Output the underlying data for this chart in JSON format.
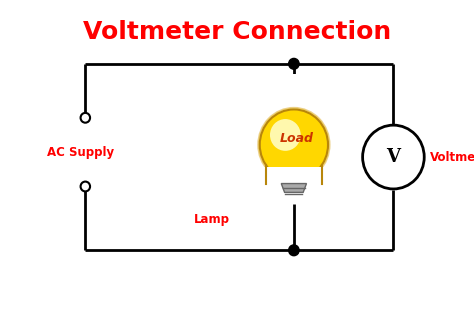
{
  "title": "Voltmeter Connection",
  "title_color": "#FF0000",
  "title_fontsize": 18,
  "background_color": "#FFFFFF",
  "border_color": "#FFA500",
  "circuit_color": "#000000",
  "label_color": "#FF0000",
  "ac_supply_label": "AC Supply",
  "lamp_label": "Lamp",
  "load_label": "Load",
  "voltmeter_label": "Voltmeter",
  "voltmeter_symbol": "V",
  "figsize": [
    4.74,
    3.19
  ],
  "dpi": 100,
  "xlim": [
    0,
    10
  ],
  "ylim": [
    0,
    6.5
  ]
}
